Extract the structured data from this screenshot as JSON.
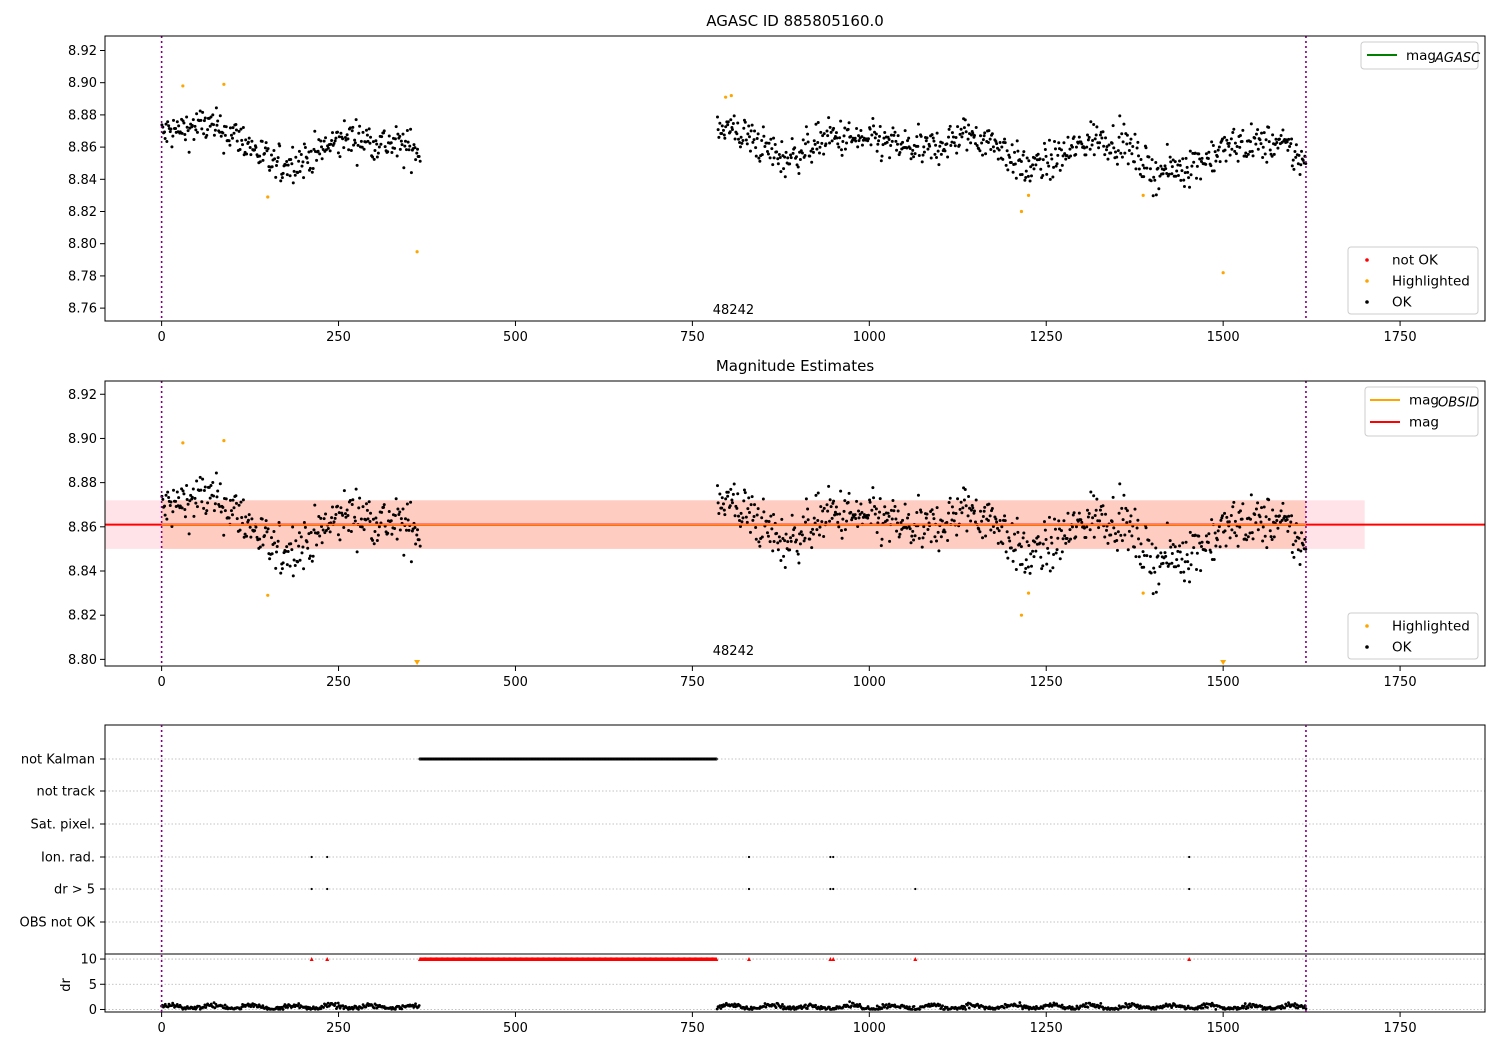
{
  "figure": {
    "title_top": "AGASC ID 885805160.0",
    "title_mid": "Magnitude Estimates",
    "obsid_label": "48242"
  },
  "chart_data": [
    {
      "type": "scatter",
      "title": "AGASC ID 885805160.0",
      "xlim": [
        -80,
        1870
      ],
      "ylim": [
        8.752,
        8.929
      ],
      "xticks": [
        0,
        250,
        500,
        750,
        1000,
        1250,
        1500,
        1750
      ],
      "yticks": [
        8.76,
        8.78,
        8.8,
        8.82,
        8.84,
        8.86,
        8.88,
        8.9,
        8.92
      ],
      "obs_boundaries": [
        0,
        1617
      ],
      "annotation": {
        "text": "48242",
        "x": 808,
        "y": 8.754
      },
      "legend_lines": [
        {
          "label": "mag",
          "sub": "AGASC",
          "color": "#008000"
        }
      ],
      "legend_markers": [
        {
          "label": "not OK",
          "color": "#ff0000"
        },
        {
          "label": "Highlighted",
          "color": "#ffa500"
        },
        {
          "label": "OK",
          "color": "#000000"
        }
      ],
      "ok_segments": [
        {
          "x": [
            0,
            365
          ],
          "trend": [
            [
              0,
              8.868
            ],
            [
              60,
              8.874
            ],
            [
              110,
              8.866
            ],
            [
              160,
              8.848
            ],
            [
              200,
              8.852
            ],
            [
              260,
              8.866
            ],
            [
              300,
              8.864
            ],
            [
              365,
              8.858
            ]
          ]
        },
        {
          "x": [
            785,
            1617
          ],
          "trend": [
            [
              785,
              8.874
            ],
            [
              830,
              8.866
            ],
            [
              880,
              8.852
            ],
            [
              940,
              8.866
            ],
            [
              1000,
              8.864
            ],
            [
              1080,
              8.858
            ],
            [
              1140,
              8.868
            ],
            [
              1180,
              8.862
            ],
            [
              1220,
              8.846
            ],
            [
              1260,
              8.852
            ],
            [
              1320,
              8.866
            ],
            [
              1360,
              8.862
            ],
            [
              1400,
              8.844
            ],
            [
              1450,
              8.848
            ],
            [
              1520,
              8.862
            ],
            [
              1580,
              8.862
            ],
            [
              1617,
              8.85
            ]
          ]
        }
      ],
      "highlighted": [
        [
          30,
          8.898
        ],
        [
          88,
          8.899
        ],
        [
          150,
          8.829
        ],
        [
          361,
          8.795
        ],
        [
          797,
          8.891
        ],
        [
          805,
          8.892
        ],
        [
          1215,
          8.82
        ],
        [
          1225,
          8.83
        ],
        [
          1387,
          8.83
        ],
        [
          1500,
          8.782
        ]
      ]
    },
    {
      "type": "scatter",
      "title": "Magnitude Estimates",
      "xlim": [
        -80,
        1870
      ],
      "ylim": [
        8.797,
        8.926
      ],
      "xticks": [
        0,
        250,
        500,
        750,
        1000,
        1250,
        1500,
        1750
      ],
      "yticks": [
        8.8,
        8.82,
        8.84,
        8.86,
        8.88,
        8.9,
        8.92
      ],
      "obs_boundaries": [
        0,
        1617
      ],
      "annotation": {
        "text": "48242",
        "x": 808,
        "y": 8.798
      },
      "legend_lines": [
        {
          "label": "mag",
          "sub": "OBSID",
          "color": "#ffa500"
        },
        {
          "label": "mag",
          "sub": "",
          "color": "#ff0000"
        }
      ],
      "legend_markers": [
        {
          "label": "Highlighted",
          "color": "#ffa500"
        },
        {
          "label": "OK",
          "color": "#000000"
        }
      ],
      "mag_line": {
        "y": 8.861,
        "x": [
          -80,
          1870
        ],
        "color": "#ff0000"
      },
      "mag_band": {
        "y": [
          8.85,
          8.872
        ],
        "x": [
          -80,
          1700
        ],
        "color": "#ffc0cb"
      },
      "obsid_band": {
        "y": [
          8.85,
          8.872
        ],
        "x": [
          0,
          1617
        ],
        "color": "#ffa07a"
      },
      "obsid_line": {
        "y": 8.861,
        "x": [
          0,
          1617
        ],
        "color": "#ffa500"
      },
      "highlighted": [
        [
          30,
          8.898
        ],
        [
          88,
          8.899
        ],
        [
          150,
          8.829
        ],
        [
          1215,
          8.82
        ],
        [
          1225,
          8.83
        ],
        [
          1387,
          8.83
        ]
      ],
      "clipped_markers": [
        [
          361,
          8.797
        ],
        [
          1500,
          8.797
        ]
      ]
    },
    {
      "type": "scatter",
      "xlim": [
        -80,
        1870
      ],
      "categories": [
        "not Kalman",
        "not track",
        "Sat. pixel.",
        "Ion. rad.",
        "dr > 5",
        "OBS not OK"
      ],
      "flags": {
        "not Kalman": [
          [
            365,
            785
          ]
        ],
        "Ion. rad.": [
          212,
          234,
          830,
          945,
          949,
          1452
        ],
        "dr > 5": [
          212,
          234,
          830,
          945,
          949,
          1065,
          1452
        ]
      },
      "obs_boundaries": [
        0,
        1617
      ]
    },
    {
      "type": "scatter",
      "ylabel": "dr",
      "xlim": [
        -80,
        1870
      ],
      "ylim": [
        -0.5,
        11
      ],
      "xticks": [
        0,
        250,
        500,
        750,
        1000,
        1250,
        1500,
        1750
      ],
      "yticks": [
        0,
        5,
        10
      ],
      "dr_segments": [
        [
          0,
          365
        ],
        [
          785,
          1617
        ]
      ],
      "dr_clipped": {
        "ranges": [
          [
            365,
            785
          ]
        ],
        "points": [
          212,
          234,
          830,
          945,
          949,
          1065,
          1452
        ],
        "value": 10,
        "color": "#ff0000"
      },
      "obs_boundaries": [
        0,
        1617
      ]
    }
  ]
}
